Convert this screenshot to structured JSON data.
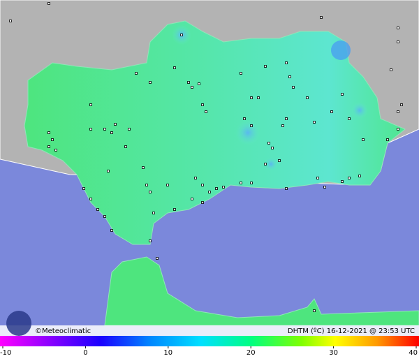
{
  "credit": "©Meteoclimatic",
  "caption": "DHTM (ºC) 16-12-2021 @ 23:53 UTC",
  "colorbar": {
    "range": [
      -10,
      40
    ],
    "ticks": [
      -10,
      0,
      10,
      20,
      30,
      40
    ]
  }
}
